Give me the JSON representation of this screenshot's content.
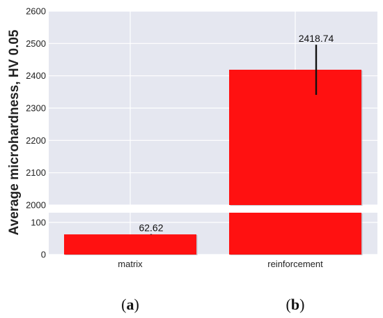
{
  "chart_data": {
    "type": "bar",
    "categories": [
      "matrix",
      "reinforcement"
    ],
    "values": [
      62.62,
      2418.74
    ],
    "data_labels": [
      "62.62",
      "2418.74"
    ],
    "error_upper": [
      63.5,
      2496
    ],
    "error_lower": [
      61.7,
      2341
    ],
    "ylabel": "Average microhardness, HV 0.05",
    "broken_axis": true,
    "upper_ylim": [
      2000,
      2600
    ],
    "upper_yticks": [
      "2000",
      "2100",
      "2200",
      "2300",
      "2400",
      "2500",
      "2600"
    ],
    "lower_ylim": [
      0,
      130
    ],
    "lower_yticks": [
      "0",
      "100"
    ],
    "grid": true,
    "bar_color": "#ff1111",
    "background_color": "#e5e7f0",
    "grid_color": "#ffffff"
  },
  "panel_labels": [
    {
      "open": "(",
      "letter": "a",
      "close": ")"
    },
    {
      "open": "(",
      "letter": "b",
      "close": ")"
    }
  ]
}
